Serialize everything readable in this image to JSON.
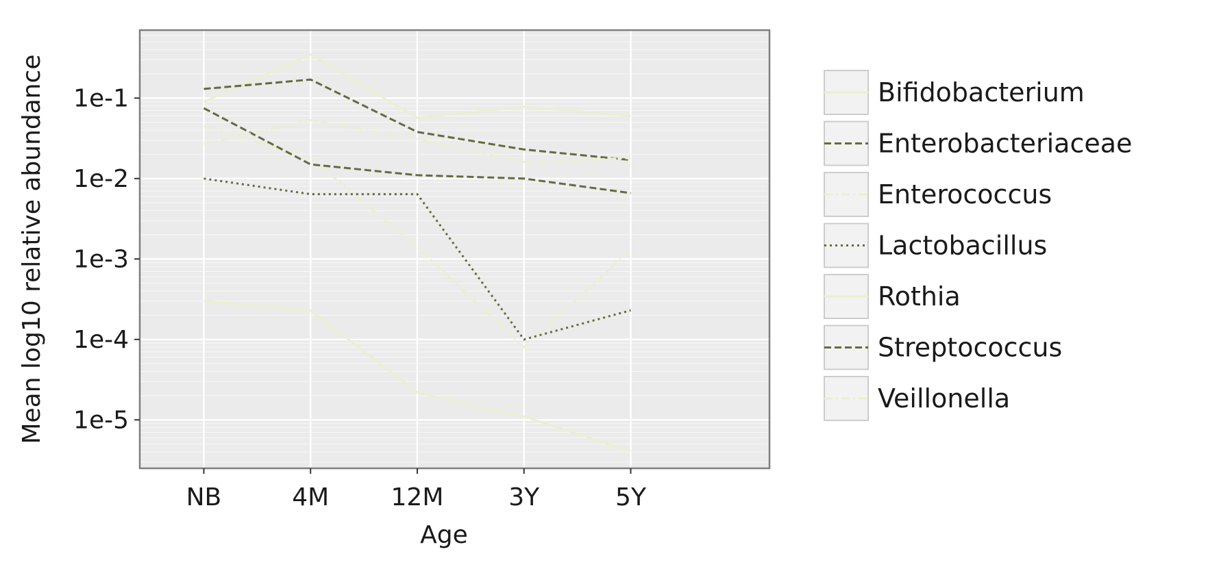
{
  "chart_data": {
    "type": "line",
    "title": "",
    "xlabel": "Age",
    "ylabel": "Mean log10 relative abundance",
    "categories": [
      "NB",
      "4M",
      "12M",
      "3Y",
      "5Y"
    ],
    "y_scale": "log",
    "ylim": [
      2.5e-06,
      0.7
    ],
    "y_ticks": [
      1e-05,
      0.0001,
      0.001,
      0.01,
      0.1
    ],
    "y_tick_labels": [
      "1e-5",
      "1e-4",
      "1e-3",
      "1e-2",
      "1e-1"
    ],
    "grid": true,
    "legend_position": "right",
    "series": [
      {
        "name": "Bifidobacterium",
        "values": [
          0.09,
          0.35,
          0.057,
          0.078,
          0.06
        ],
        "color": "#ecefcf",
        "dash": "solid"
      },
      {
        "name": "Enterobacteriaceae",
        "values": [
          0.13,
          0.17,
          0.038,
          0.023,
          0.017
        ],
        "color": "#636b3e",
        "dash": "dashed"
      },
      {
        "name": "Enterococcus",
        "values": [
          0.045,
          0.018,
          0.0014,
          8e-05,
          0.0013
        ],
        "color": "#ecefcf",
        "dash": "dashdot"
      },
      {
        "name": "Lactobacillus",
        "values": [
          0.01,
          0.0064,
          0.0064,
          0.0001,
          0.00023
        ],
        "color": "#636b3e",
        "dash": "dotted"
      },
      {
        "name": "Rothia",
        "values": [
          0.0003,
          0.00023,
          2.2e-05,
          1.1e-05,
          4.1e-06
        ],
        "color": "#ecefcf",
        "dash": "solid"
      },
      {
        "name": "Streptococcus",
        "values": [
          0.075,
          0.015,
          0.011,
          0.01,
          0.0066
        ],
        "color": "#636b3e",
        "dash": "dashed"
      },
      {
        "name": "Veillonella",
        "values": [
          0.027,
          0.053,
          0.031,
          0.016,
          0.018
        ],
        "color": "#ecefcf",
        "dash": "dashdot"
      }
    ]
  }
}
